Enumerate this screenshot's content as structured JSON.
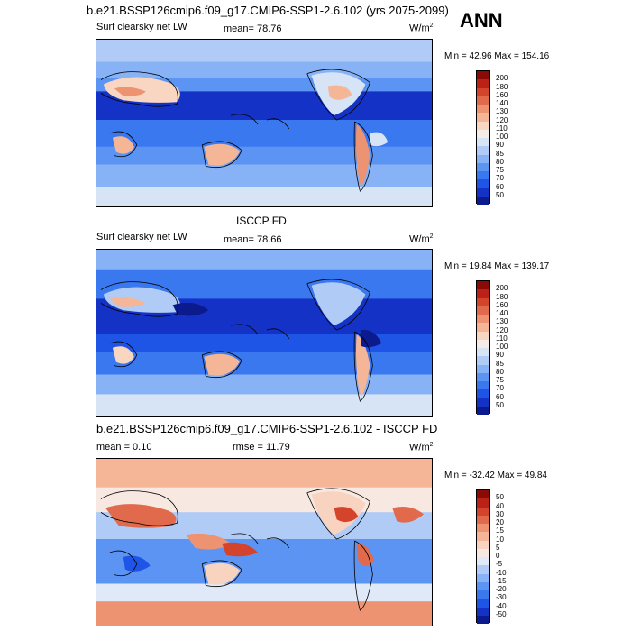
{
  "header": {
    "title": "b.e21.BSSP126cmip6.f09_g17.CMIP6-SSP1-2.6.102 (yrs 2075-2099)",
    "season": "ANN"
  },
  "colors": {
    "abs_scale": [
      "#0b1a8c",
      "#1433c6",
      "#1f55e6",
      "#3a78f0",
      "#5c94f4",
      "#88b2f6",
      "#b0ccf6",
      "#d6e4f6",
      "#f4ece6",
      "#f8d6c2",
      "#f4b697",
      "#ee9372",
      "#e26a4c",
      "#d4432c",
      "#bb2116",
      "#8a0a06"
    ],
    "diff_scale": [
      "#0b1a8c",
      "#1433c6",
      "#1f55e6",
      "#3a78f0",
      "#5c94f4",
      "#88b2f6",
      "#b0ccf6",
      "#dfe9f7",
      "#f7e9e2",
      "#f8d3bf",
      "#f4b697",
      "#ee9372",
      "#e26a4c",
      "#d4432c",
      "#bb2116",
      "#8a0a06"
    ]
  },
  "panels": [
    {
      "id": "model",
      "variable": "Surf clearsky net LW",
      "stat_text": "mean=  78.76",
      "units_base": "W/m",
      "units_exp": "2",
      "minmax": "Min =  42.96 Max = 154.16",
      "scale": "abs_scale",
      "colorbar_labels": [
        "200",
        "180",
        "160",
        "140",
        "130",
        "120",
        "110",
        "100",
        "90",
        "85",
        "80",
        "75",
        "70",
        "60",
        "50"
      ]
    },
    {
      "id": "obs",
      "heading": "ISCCP FD",
      "variable": "Surf clearsky net LW",
      "stat_text": "mean=  78.66",
      "units_base": "W/m",
      "units_exp": "2",
      "minmax": "Min =  19.84 Max = 139.17",
      "scale": "abs_scale",
      "colorbar_labels": [
        "200",
        "180",
        "160",
        "140",
        "130",
        "120",
        "110",
        "100",
        "90",
        "85",
        "80",
        "75",
        "70",
        "60",
        "50"
      ]
    },
    {
      "id": "diff",
      "heading": "b.e21.BSSP126cmip6.f09_g17.CMIP6-SSP1-2.6.102 - ISCCP FD",
      "mean_text": "mean =   0.10",
      "rmse_text": "rmse =  11.79",
      "units_base": "W/m",
      "units_exp": "2",
      "minmax": "Min = -32.42 Max =  49.84",
      "scale": "diff_scale",
      "colorbar_labels": [
        "50",
        "40",
        "30",
        "20",
        "15",
        "10",
        "5",
        "0",
        "-5",
        "-10",
        "-15",
        "-20",
        "-30",
        "-40",
        "-50"
      ]
    }
  ]
}
